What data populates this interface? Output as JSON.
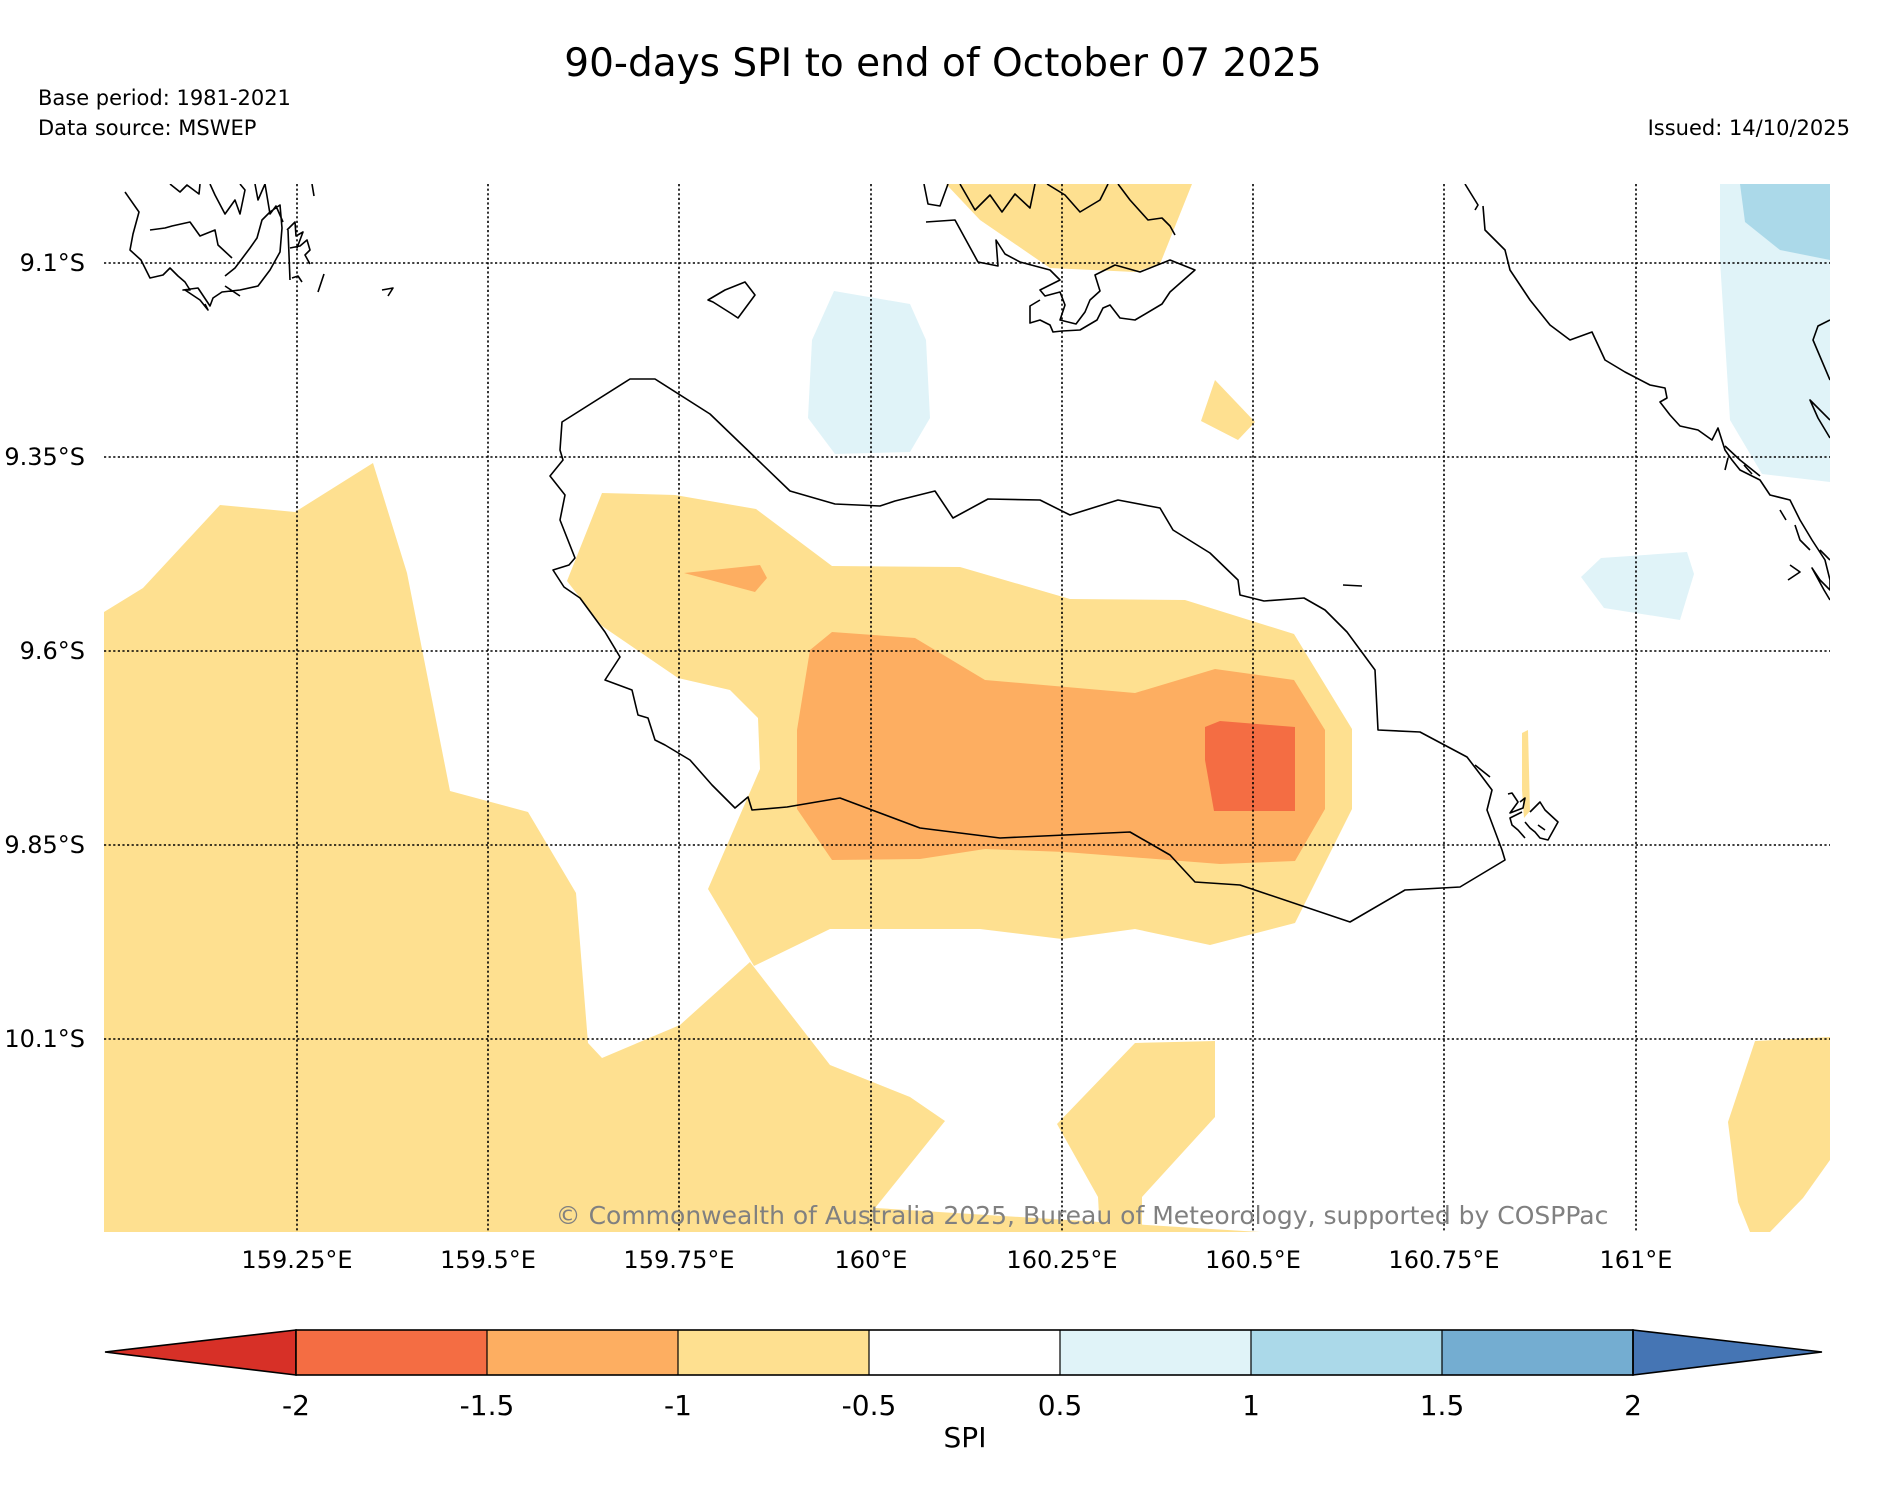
{
  "header": {
    "title": "90-days SPI to end of October 07 2025",
    "base_period": "Base period: 1981-2021",
    "data_source": "Data source: MSWEP",
    "issued": "Issued: 14/10/2025"
  },
  "map": {
    "lat_labels": [
      "9.1°S",
      "9.35°S",
      "9.6°S",
      "9.85°S",
      "10.1°S"
    ],
    "lon_labels": [
      "159.25°E",
      "159.5°E",
      "159.75°E",
      "160°E",
      "160.25°E",
      "160.5°E",
      "160.75°E",
      "161°E"
    ],
    "copyright": "© Commonwealth of Australia 2025, Bureau of Meteorology, supported by COSPPac",
    "colors": {
      "lt_-2": "#d73027",
      "-2_to_-1.5": "#f46d43",
      "-1.5_to_-1": "#fdae61",
      "-1_to_-0.5": "#fee090",
      "-0.5_to_0.5": "#ffffff",
      "0.5_to_1": "#e0f3f8",
      "1_to_1.5": "#abd9e9",
      "1.5_to_2": "#74add1",
      "gt_2": "#4575b4"
    }
  },
  "colorbar": {
    "label": "SPI",
    "ticks": [
      "-2",
      "-1.5",
      "-1",
      "-0.5",
      "0.5",
      "1",
      "1.5",
      "2"
    ]
  }
}
